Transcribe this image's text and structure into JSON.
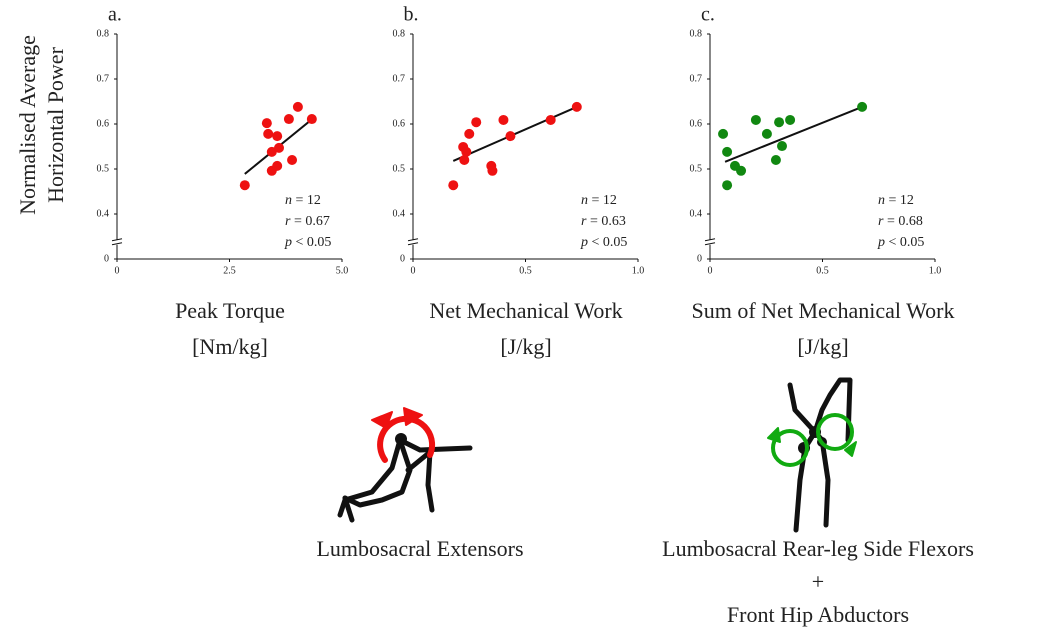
{
  "chart_data": [
    {
      "type": "scatter",
      "panel_label": "a.",
      "ylabel": [
        "Normalised Average",
        "Horizontal Power"
      ],
      "xlabel": [
        "Peak Torque",
        "[Nm/kg]"
      ],
      "color": "#ee1111",
      "x": [
        2.84,
        3.33,
        3.36,
        3.56,
        3.44,
        3.6,
        3.44,
        3.56,
        3.82,
        3.89,
        4.02,
        4.33
      ],
      "y": [
        0.464,
        0.602,
        0.578,
        0.573,
        0.538,
        0.547,
        0.496,
        0.507,
        0.611,
        0.52,
        0.638,
        0.611
      ],
      "trendline": {
        "x": [
          2.84,
          4.4
        ],
        "y": [
          0.489,
          0.616
        ]
      },
      "annotations": [
        "n = 12",
        "r = 0.67",
        "p < 0.05"
      ],
      "xlim": [
        0,
        5
      ],
      "xticks": [
        0,
        2.5,
        {
          "value": 5,
          "label": "5.0"
        }
      ],
      "ylim": [
        0.3,
        0.8
      ],
      "yticks": [
        0,
        0.4,
        0.5,
        0.6,
        0.7,
        0.8
      ],
      "y_axis_break": true
    },
    {
      "type": "scatter",
      "panel_label": "b.",
      "xlabel": [
        "Net Mechanical Work",
        "[J/kg]"
      ],
      "color": "#ee1111",
      "x": [
        0.179,
        0.223,
        0.228,
        0.25,
        0.237,
        0.281,
        0.348,
        0.353,
        0.402,
        0.433,
        0.612,
        0.728
      ],
      "y": [
        0.464,
        0.549,
        0.52,
        0.578,
        0.538,
        0.604,
        0.507,
        0.496,
        0.609,
        0.573,
        0.609,
        0.638
      ],
      "trendline": {
        "x": [
          0.179,
          0.728
        ],
        "y": [
          0.518,
          0.638
        ]
      },
      "annotations": [
        "n = 12",
        "r = 0.63",
        "p < 0.05"
      ],
      "xlim": [
        0,
        1
      ],
      "xticks": [
        0,
        0.5,
        {
          "value": 1,
          "label": "1.0"
        }
      ],
      "ylim": [
        0.3,
        0.8
      ],
      "yticks": [
        0,
        0.4,
        0.5,
        0.6,
        0.7,
        0.8
      ],
      "y_axis_break": true
    },
    {
      "type": "scatter",
      "panel_label": "c.",
      "xlabel": [
        "Sum of Net Mechanical Work",
        "[J/kg]"
      ],
      "color": "#118811",
      "x": [
        0.058,
        0.076,
        0.111,
        0.138,
        0.076,
        0.204,
        0.253,
        0.307,
        0.32,
        0.293,
        0.356,
        0.676
      ],
      "y": [
        0.578,
        0.538,
        0.507,
        0.496,
        0.464,
        0.609,
        0.578,
        0.604,
        0.551,
        0.52,
        0.609,
        0.638
      ],
      "trendline": {
        "x": [
          0.067,
          0.676
        ],
        "y": [
          0.516,
          0.638
        ]
      },
      "annotations": [
        "n = 12",
        "r = 0.68",
        "p < 0.05"
      ],
      "xlim": [
        0,
        1
      ],
      "xticks": [
        0,
        0.5,
        {
          "value": 1,
          "label": "1.0"
        }
      ],
      "ylim": [
        0.3,
        0.8
      ],
      "yticks": [
        0,
        0.4,
        0.5,
        0.6,
        0.7,
        0.8
      ],
      "y_axis_break": true
    }
  ],
  "illustrations": [
    {
      "caption": [
        "Lumbosacral Extensors"
      ]
    },
    {
      "caption": [
        "Lumbosacral Rear-leg Side Flexors",
        "+",
        "Front Hip Abductors"
      ]
    }
  ]
}
